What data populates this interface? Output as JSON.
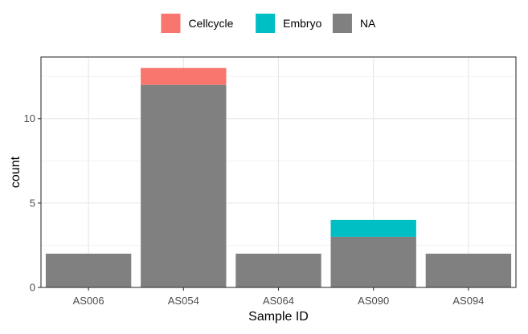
{
  "chart_data": {
    "type": "bar",
    "stacked": true,
    "categories": [
      "AS006",
      "AS054",
      "AS064",
      "AS090",
      "AS094"
    ],
    "series": [
      {
        "name": "NA",
        "values": [
          2,
          12,
          2,
          3,
          2
        ],
        "color": "#808080"
      },
      {
        "name": "Embryo",
        "values": [
          0,
          0,
          0,
          1,
          0
        ],
        "color": "#00BFC4"
      },
      {
        "name": "Cellcycle",
        "values": [
          0,
          1,
          0,
          0,
          0
        ],
        "color": "#F8766D"
      }
    ],
    "legend": {
      "position": "top",
      "entries": [
        {
          "label": "Cellcycle",
          "color": "#F8766D"
        },
        {
          "label": "Embryo",
          "color": "#00BFC4"
        },
        {
          "label": "NA",
          "color": "#808080"
        }
      ]
    },
    "xlabel": "Sample ID",
    "ylabel": "count",
    "ylim": [
      0,
      13.65
    ],
    "yticks": [
      0,
      5,
      10
    ],
    "grid": true,
    "panel_border": true
  }
}
